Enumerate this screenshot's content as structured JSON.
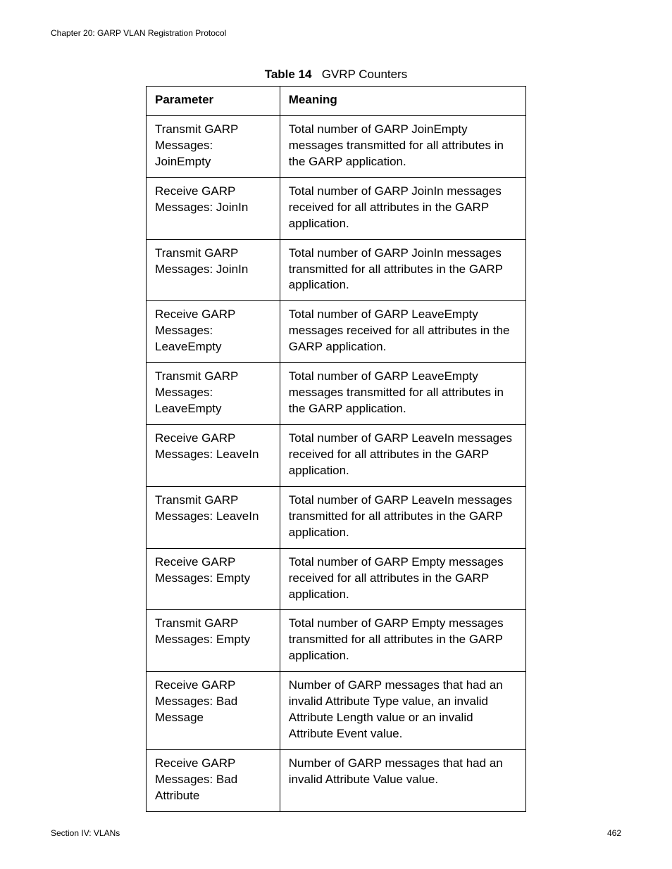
{
  "header": {
    "chapter": "Chapter 20: GARP VLAN Registration Protocol"
  },
  "table": {
    "caption_label": "Table 14",
    "caption_title": "GVRP Counters",
    "columns": [
      "Parameter",
      "Meaning"
    ],
    "rows": [
      {
        "parameter": "Transmit GARP Messages: JoinEmpty",
        "meaning": "Total number of GARP JoinEmpty messages transmitted for all attributes in the GARP application."
      },
      {
        "parameter": "Receive GARP Messages: JoinIn",
        "meaning": "Total number of GARP JoinIn messages received for all attributes in the GARP application."
      },
      {
        "parameter": "Transmit GARP Messages: JoinIn",
        "meaning": "Total number of GARP JoinIn messages transmitted for all attributes in the GARP application."
      },
      {
        "parameter": "Receive GARP Messages: LeaveEmpty",
        "meaning": "Total number of GARP LeaveEmpty messages received for all attributes in the GARP application."
      },
      {
        "parameter": "Transmit GARP Messages: LeaveEmpty",
        "meaning": "Total number of GARP LeaveEmpty messages transmitted for all attributes in the GARP application."
      },
      {
        "parameter": "Receive GARP Messages: LeaveIn",
        "meaning": "Total number of GARP LeaveIn messages received for all attributes in the GARP application."
      },
      {
        "parameter": "Transmit GARP Messages: LeaveIn",
        "meaning": "Total number of GARP LeaveIn messages transmitted for all attributes in the GARP application."
      },
      {
        "parameter": "Receive GARP Messages: Empty",
        "meaning": "Total number of GARP Empty messages received for all attributes in the GARP application."
      },
      {
        "parameter": "Transmit GARP Messages: Empty",
        "meaning": "Total number of GARP Empty messages transmitted for all attributes in the GARP application."
      },
      {
        "parameter": "Receive GARP Messages: Bad Message",
        "meaning": "Number of GARP messages that had an invalid Attribute Type value, an invalid Attribute Length value or an invalid Attribute Event value."
      },
      {
        "parameter": "Receive GARP Messages: Bad Attribute",
        "meaning": "Number of GARP messages that had an invalid Attribute Value value."
      }
    ]
  },
  "footer": {
    "section": "Section IV: VLANs",
    "page": "462"
  }
}
